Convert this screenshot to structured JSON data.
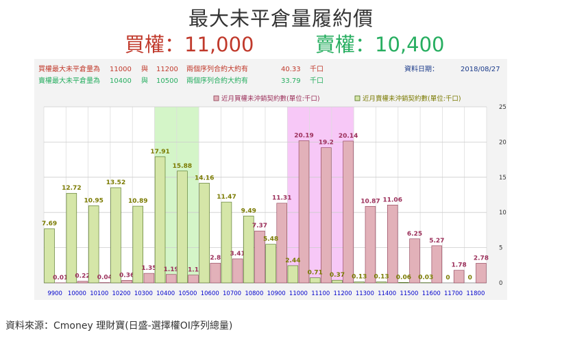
{
  "title": "最大未平倉量履約價",
  "call_headline": "買權：11,000",
  "put_headline": "賣權：10,400",
  "info": {
    "call_label": "買權最大未平倉量為",
    "call_strike_a": "11000",
    "call_and": "與",
    "call_strike_b": "11200",
    "call_mid": "兩個序列合約大約有",
    "call_value": "40.33",
    "call_unit": "千口",
    "put_label": "賣權最大未平倉量為",
    "put_strike_a": "10400",
    "put_and": "與",
    "put_strike_b": "10500",
    "put_mid": "兩個序列合約大約有",
    "put_value": "33.79",
    "put_unit": "千口",
    "date_label": "資料日期：",
    "date_value": "2018/08/27"
  },
  "source": "資料來源：Cmoney 理財寶(日盛-選擇權OI序列總量)",
  "colors": {
    "call_bar": "#e2b1b9",
    "call_bar_stroke": "#8b3a52",
    "put_bar": "#d5e6a8",
    "put_bar_stroke": "#4a6a1a",
    "call_label": "#9b2f5a",
    "put_label": "#7a7a00",
    "call_highlight": "#f7c8f7",
    "put_highlight": "#d4f5c8",
    "axis_label": "#0000cc",
    "red_text": "#c0392b",
    "green_text": "#27ae60",
    "plot_bg": "#ffffff",
    "panel_bg": "#f3f3f3"
  },
  "chart_data": {
    "type": "bar",
    "categories": [
      "9900",
      "10000",
      "10100",
      "10200",
      "10300",
      "10400",
      "10500",
      "10600",
      "10700",
      "10800",
      "10900",
      "11000",
      "11100",
      "11200",
      "11300",
      "11400",
      "11500",
      "11600",
      "11700",
      "11800"
    ],
    "series": [
      {
        "name": "近月買權未沖銷契約數(單位:千口)",
        "values": [
          0.01,
          0.22,
          0.04,
          0.36,
          1.35,
          1.19,
          1.1,
          2.8,
          3.41,
          7.37,
          11.31,
          20.19,
          19.2,
          20.14,
          10.87,
          11.06,
          6.25,
          5.27,
          1.78,
          2.78
        ]
      },
      {
        "name": "近月賣權未沖銷契約數(單位:千口)",
        "values": [
          7.69,
          12.72,
          10.95,
          13.52,
          10.89,
          17.91,
          15.88,
          14.16,
          11.47,
          9.49,
          5.48,
          2.44,
          0.71,
          0.37,
          0.13,
          0.13,
          0.06,
          0.03,
          0,
          0
        ]
      }
    ],
    "call_value_labels": [
      "0.01",
      "0.22",
      "0.04",
      "0.36",
      "1.35",
      "1.19",
      "1.1",
      "2.8",
      "3.41",
      "7.37",
      "11.31",
      "20.19",
      "19.2",
      "20.14",
      "10.87",
      "11.06",
      "6.25",
      "5.27",
      "1.78",
      "2.78"
    ],
    "put_value_labels": [
      "7.69",
      "12.72",
      "10.95",
      "13.52",
      "10.89",
      "17.91",
      "15.88",
      "14.16",
      "11.47",
      "9.49",
      "5.48",
      "2.44",
      "0.71",
      "0.37",
      "0.13",
      "0.13",
      "0.06",
      "0.03",
      "0",
      "0"
    ],
    "highlight_put": [
      "10400",
      "10500"
    ],
    "highlight_call": [
      "11000",
      "11100",
      "11200"
    ],
    "ylim": [
      0,
      25
    ],
    "yticks": [
      "0",
      "5",
      "10",
      "15",
      "20",
      "25"
    ],
    "legend_position": "top-right",
    "grid": true
  }
}
